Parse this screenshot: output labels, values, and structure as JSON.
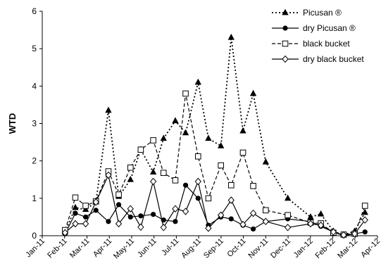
{
  "chart_data": {
    "type": "line",
    "ylabel": "WTD",
    "xlabel": "",
    "ylim": [
      0,
      6
    ],
    "yticks": [
      "0",
      "1",
      "2",
      "3",
      "4",
      "5",
      "6"
    ],
    "xticks": [
      "Jan-11",
      "Feb-11",
      "Mar-11",
      "Apr-11",
      "May-11",
      "Jun-11",
      "Jul-11",
      "Aug-11",
      "Sep-11",
      "Oct-11",
      "Nov-11",
      "Dec-11",
      "Jan-12",
      "Feb-12",
      "Mar-12",
      "Apr-12"
    ],
    "grid": false,
    "legend_position": "top-right",
    "series": [
      {
        "name": "Picusan ®",
        "line": "dotted",
        "marker": "filled-triangle",
        "points": [
          [
            "2011-02-01",
            0.1
          ],
          [
            "2011-02-15",
            0.75
          ],
          [
            "2011-03-01",
            0.7
          ],
          [
            "2011-03-15",
            0.9
          ],
          [
            "2011-04-01",
            3.35
          ],
          [
            "2011-04-15",
            1.05
          ],
          [
            "2011-05-01",
            1.5
          ],
          [
            "2011-05-15",
            2.3
          ],
          [
            "2011-06-01",
            1.7
          ],
          [
            "2011-06-15",
            2.6
          ],
          [
            "2011-07-01",
            3.07
          ],
          [
            "2011-07-15",
            2.75
          ],
          [
            "2011-08-01",
            4.1
          ],
          [
            "2011-08-15",
            2.6
          ],
          [
            "2011-09-01",
            2.4
          ],
          [
            "2011-09-15",
            5.3
          ],
          [
            "2011-10-01",
            2.8
          ],
          [
            "2011-10-15",
            3.8
          ],
          [
            "2011-11-01",
            1.97
          ],
          [
            "2011-12-01",
            1.0
          ],
          [
            "2012-01-01",
            0.5
          ],
          [
            "2012-01-15",
            0.58
          ],
          [
            "2012-02-01",
            0.12
          ],
          [
            "2012-02-15",
            0.02
          ],
          [
            "2012-03-01",
            0.12
          ],
          [
            "2012-03-15",
            0.62
          ]
        ]
      },
      {
        "name": "dry Picusan ®",
        "line": "solid",
        "marker": "filled-circle",
        "points": [
          [
            "2011-02-01",
            0.05
          ],
          [
            "2011-02-15",
            0.6
          ],
          [
            "2011-03-01",
            0.5
          ],
          [
            "2011-03-15",
            0.68
          ],
          [
            "2011-04-01",
            0.38
          ],
          [
            "2011-04-15",
            0.83
          ],
          [
            "2011-05-01",
            0.5
          ],
          [
            "2011-05-15",
            0.53
          ],
          [
            "2011-06-01",
            0.57
          ],
          [
            "2011-06-15",
            0.42
          ],
          [
            "2011-07-01",
            0.38
          ],
          [
            "2011-07-15",
            1.35
          ],
          [
            "2011-08-01",
            1.0
          ],
          [
            "2011-08-15",
            0.28
          ],
          [
            "2011-09-01",
            0.5
          ],
          [
            "2011-09-15",
            0.45
          ],
          [
            "2011-10-01",
            0.28
          ],
          [
            "2011-10-15",
            0.18
          ],
          [
            "2011-11-01",
            0.38
          ],
          [
            "2011-12-01",
            0.45
          ],
          [
            "2012-01-01",
            0.38
          ],
          [
            "2012-01-15",
            0.25
          ],
          [
            "2012-02-01",
            0.1
          ],
          [
            "2012-02-15",
            0.0
          ],
          [
            "2012-03-01",
            0.05
          ],
          [
            "2012-03-15",
            0.1
          ]
        ]
      },
      {
        "name": "black bucket",
        "line": "dashed",
        "marker": "open-square",
        "points": [
          [
            "2011-02-01",
            0.15
          ],
          [
            "2011-02-15",
            1.02
          ],
          [
            "2011-03-01",
            0.8
          ],
          [
            "2011-03-15",
            0.92
          ],
          [
            "2011-04-01",
            1.72
          ],
          [
            "2011-04-15",
            1.1
          ],
          [
            "2011-05-01",
            1.82
          ],
          [
            "2011-05-15",
            2.3
          ],
          [
            "2011-06-01",
            2.55
          ],
          [
            "2011-06-15",
            1.68
          ],
          [
            "2011-07-01",
            1.48
          ],
          [
            "2011-07-15",
            3.8
          ],
          [
            "2011-08-01",
            2.12
          ],
          [
            "2011-08-15",
            1.0
          ],
          [
            "2011-09-01",
            1.88
          ],
          [
            "2011-09-15",
            1.35
          ],
          [
            "2011-10-01",
            2.22
          ],
          [
            "2011-10-15",
            1.33
          ],
          [
            "2011-11-01",
            0.68
          ],
          [
            "2011-12-01",
            0.55
          ],
          [
            "2012-01-01",
            0.35
          ],
          [
            "2012-01-15",
            0.33
          ],
          [
            "2012-02-01",
            0.08
          ],
          [
            "2012-02-15",
            0.03
          ],
          [
            "2012-03-01",
            0.05
          ],
          [
            "2012-03-15",
            0.8
          ]
        ]
      },
      {
        "name": "dry black bucket",
        "line": "solid",
        "marker": "open-diamond",
        "points": [
          [
            "2011-02-01",
            0.08
          ],
          [
            "2011-02-15",
            0.32
          ],
          [
            "2011-03-01",
            0.32
          ],
          [
            "2011-03-15",
            0.9
          ],
          [
            "2011-04-01",
            1.62
          ],
          [
            "2011-04-15",
            0.32
          ],
          [
            "2011-05-01",
            0.72
          ],
          [
            "2011-05-15",
            0.23
          ],
          [
            "2011-06-01",
            1.45
          ],
          [
            "2011-06-15",
            0.22
          ],
          [
            "2011-07-01",
            0.72
          ],
          [
            "2011-07-15",
            0.65
          ],
          [
            "2011-08-01",
            1.45
          ],
          [
            "2011-08-15",
            0.2
          ],
          [
            "2011-09-01",
            0.55
          ],
          [
            "2011-09-15",
            0.95
          ],
          [
            "2011-10-01",
            0.3
          ],
          [
            "2011-10-15",
            0.6
          ],
          [
            "2011-11-01",
            0.38
          ],
          [
            "2011-12-01",
            0.22
          ],
          [
            "2012-01-01",
            0.32
          ],
          [
            "2012-01-15",
            0.28
          ],
          [
            "2012-02-01",
            0.1
          ],
          [
            "2012-02-15",
            0.02
          ],
          [
            "2012-03-01",
            0.05
          ],
          [
            "2012-03-15",
            0.42
          ]
        ]
      }
    ]
  }
}
